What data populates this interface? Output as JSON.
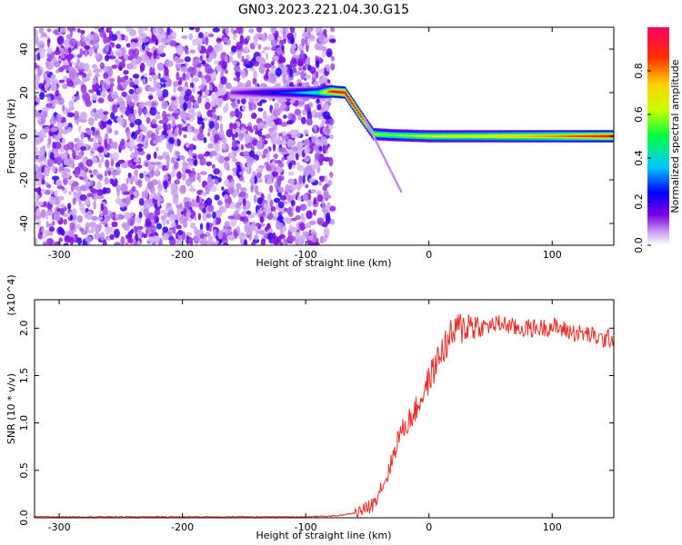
{
  "title": "GN03.2023.221.04.30.G15",
  "chart_data": [
    {
      "type": "heatmap",
      "name": "spectrogram",
      "xlabel": "Height of straight line (km)",
      "ylabel": "Frequency (Hz)",
      "xlim": [
        -320,
        150
      ],
      "ylim": [
        -50,
        50
      ],
      "xticks": [
        -300,
        -200,
        -100,
        0,
        100
      ],
      "yticks": [
        -40,
        -20,
        0,
        20,
        40
      ],
      "colorbar": {
        "label": "Normalized spectral amplitude",
        "range": [
          0,
          1
        ],
        "ticks": [
          "0.0",
          "0.2",
          "0.4",
          "0.6",
          "0.8"
        ],
        "colors": [
          "#ffffff",
          "#7b00e0",
          "#0000ff",
          "#00c8ff",
          "#00ff40",
          "#c8ff00",
          "#ffd000",
          "#ff3000",
          "#ff0066"
        ]
      },
      "noise_region": {
        "x": [
          -320,
          -78
        ],
        "y": [
          -50,
          50
        ],
        "amplitude": [
          0.0,
          0.25
        ]
      },
      "signal_track": [
        {
          "x": -160,
          "y": 20,
          "amplitude": 0.12
        },
        {
          "x": -110,
          "y": 20,
          "amplitude": 0.3
        },
        {
          "x": -90,
          "y": 20,
          "amplitude": 0.45
        },
        {
          "x": -78,
          "y": 20.5,
          "amplitude": 0.95
        },
        {
          "x": -68,
          "y": 20,
          "amplitude": 0.95
        },
        {
          "x": -55,
          "y": 9,
          "amplitude": 0.85
        },
        {
          "x": -45,
          "y": 1,
          "amplitude": 0.6
        },
        {
          "x": -30,
          "y": 0.5,
          "amplitude": 0.55
        },
        {
          "x": 0,
          "y": 0,
          "amplitude": 0.65
        },
        {
          "x": 50,
          "y": 0,
          "amplitude": 0.7
        },
        {
          "x": 105,
          "y": 0,
          "amplitude": 0.8
        },
        {
          "x": 150,
          "y": 0,
          "amplitude": 0.95
        }
      ]
    },
    {
      "type": "line",
      "name": "snr",
      "xlabel": "Height of straight line (km)",
      "ylabel": "SNR (10 * v/v)",
      "y_multiplier": "(x10^4)",
      "xlim": [
        -320,
        150
      ],
      "ylim": [
        0,
        2.3
      ],
      "xticks": [
        -300,
        -200,
        -100,
        0,
        100
      ],
      "yticks": [
        "0.0",
        "0.5",
        "1.0",
        "1.5",
        "2.0"
      ],
      "line_color": "#e8302a",
      "x": [
        -320,
        -200,
        -100,
        -75,
        -60,
        -50,
        -45,
        -40,
        -35,
        -30,
        -25,
        -20,
        -15,
        -10,
        -5,
        0,
        5,
        10,
        15,
        20,
        25,
        30,
        35,
        40,
        50,
        60,
        70,
        80,
        90,
        100,
        110,
        120,
        130,
        140,
        150
      ],
      "y": [
        0.01,
        0.01,
        0.01,
        0.02,
        0.05,
        0.1,
        0.15,
        0.3,
        0.4,
        0.6,
        0.85,
        0.95,
        1.05,
        1.15,
        1.3,
        1.45,
        1.6,
        1.75,
        1.85,
        1.95,
        2.0,
        2.02,
        2.05,
        2.0,
        2.03,
        2.05,
        2.0,
        2.0,
        2.0,
        2.02,
        1.98,
        1.95,
        1.93,
        1.88,
        1.9
      ]
    }
  ]
}
